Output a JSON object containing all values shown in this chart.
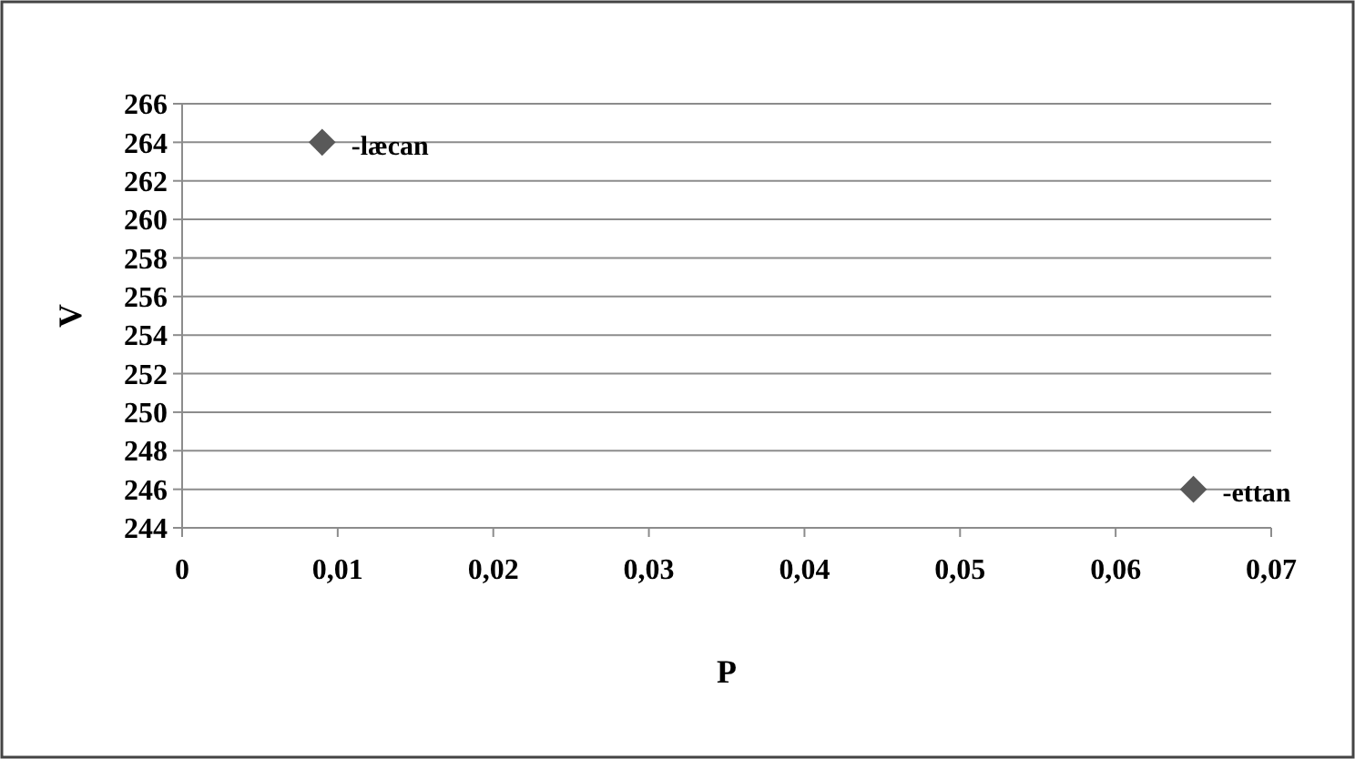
{
  "chart_data": {
    "type": "scatter",
    "xlabel": "P",
    "ylabel": "V",
    "x": [
      0.009,
      0.065
    ],
    "values": [
      264,
      246
    ],
    "color": "#595959",
    "marker": "diamond",
    "xlim": [
      0,
      0.07
    ],
    "xticks": [
      0,
      {
        "value": 0.01,
        "label": "0,01"
      },
      {
        "value": 0.02,
        "label": "0,02"
      },
      {
        "value": 0.03,
        "label": "0,03"
      },
      {
        "value": 0.04,
        "label": "0,04"
      },
      {
        "value": 0.05,
        "label": "0,05"
      },
      {
        "value": 0.06,
        "label": "0,06"
      },
      {
        "value": 0.07,
        "label": "0,07"
      }
    ],
    "ylim": [
      244,
      266
    ],
    "yticks": [
      244,
      246,
      248,
      250,
      252,
      254,
      256,
      258,
      260,
      262,
      264,
      266
    ],
    "grid": "y",
    "annotations": [
      {
        "text": "-læcan",
        "x": 0.009,
        "y": 264
      },
      {
        "text": "-ettan",
        "x": 0.065,
        "y": 246
      }
    ]
  }
}
